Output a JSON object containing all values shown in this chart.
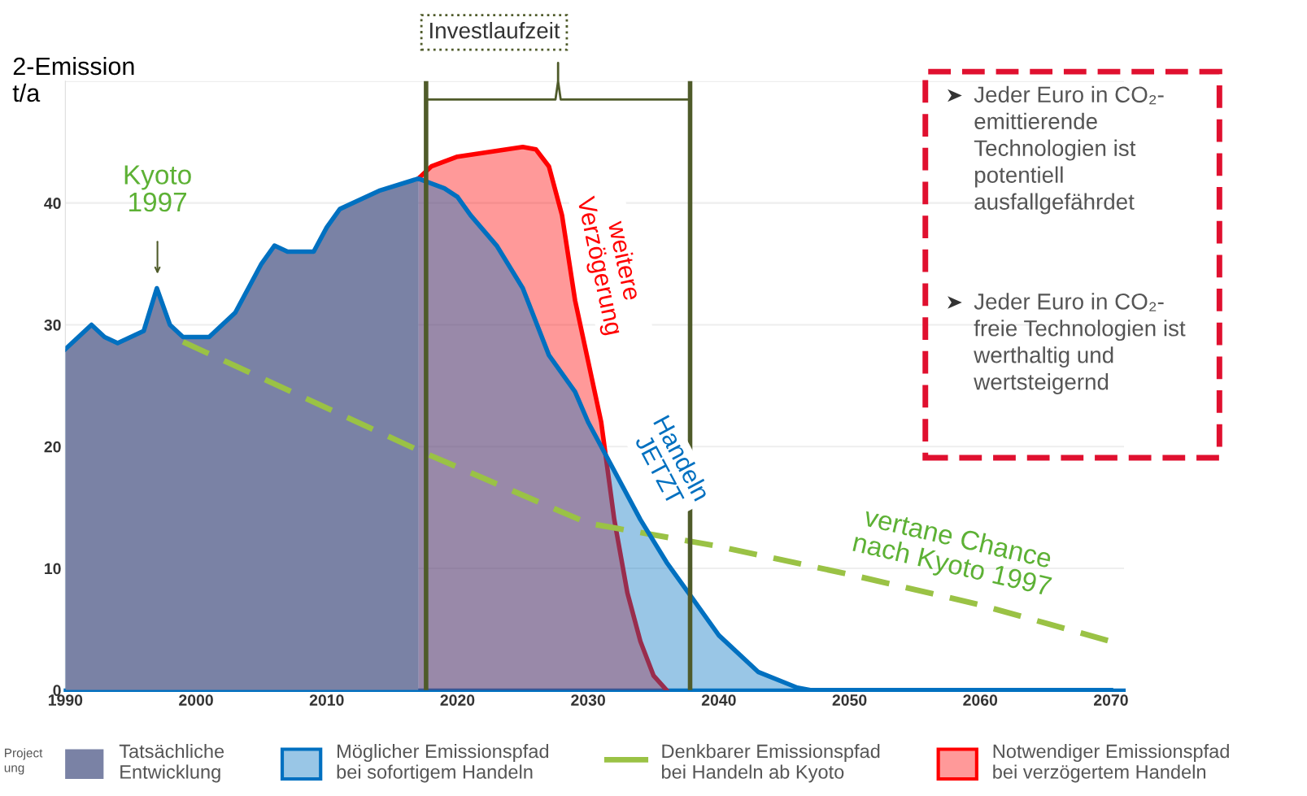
{
  "chart_data": {
    "type": "area",
    "ylabel": "2-Emission\nt/a",
    "xlim": [
      1990,
      2071
    ],
    "xticks": [
      1990,
      2000,
      2010,
      2020,
      2030,
      2040,
      2050,
      2060,
      2070
    ],
    "ylim": [
      0,
      50
    ],
    "yticks": [
      0,
      10,
      20,
      30,
      40,
      {
        "value": 50,
        "label": null
      }
    ],
    "grid": "y",
    "legend": "bottom",
    "series": [
      {
        "name": "Tatsächliche\nEntwicklung",
        "color": "#7a82a5",
        "x": [
          1990,
          1992,
          1993,
          1994,
          1996,
          1997,
          1998,
          1999,
          2001,
          2003,
          2005,
          2006,
          2007,
          2009,
          2010,
          2011,
          2014,
          2017
        ],
        "values": [
          28,
          30,
          29,
          28.5,
          29.5,
          33,
          30,
          29,
          29,
          31,
          35,
          36.5,
          36,
          36,
          38,
          39.5,
          41,
          42
        ]
      },
      {
        "name": "Möglicher Emissionspfad\nbei sofortigem Handeln",
        "color": "#0070c0",
        "line_style": "solid",
        "x": [
          1990,
          1992,
          1993,
          1994,
          1996,
          1997,
          1998,
          1999,
          2001,
          2003,
          2005,
          2006,
          2007,
          2009,
          2010,
          2011,
          2014,
          2017,
          2019,
          2020,
          2021,
          2023,
          2025,
          2027,
          2029,
          2030,
          2032,
          2034,
          2036,
          2038,
          2040,
          2043,
          2046,
          2047,
          2070
        ],
        "values": [
          28,
          30,
          29,
          28.5,
          29.5,
          33,
          30,
          29,
          29,
          31,
          35,
          36.5,
          36,
          36,
          38,
          39.5,
          41,
          42,
          41.2,
          40.5,
          39,
          36.5,
          33,
          27.5,
          24.5,
          22,
          18,
          14,
          10.5,
          7.5,
          4.5,
          1.5,
          0.2,
          0,
          0
        ]
      },
      {
        "name": "Denkbarer Emissionspfad\nbei Handeln ab Kyoto",
        "type": "line",
        "color": "#9ac245",
        "line_style": "dashed",
        "x": [
          1999,
          2017,
          2030,
          2040,
          2050,
          2060,
          2070
        ],
        "values": [
          28.6,
          19.7,
          13.7,
          11.8,
          9.5,
          7,
          4
        ]
      },
      {
        "name": "Notwendiger Emissionspfad\nbei verzögertem Handeln",
        "color": "#ff0000",
        "line_style": "solid",
        "x": [
          2017,
          2018,
          2020,
          2025,
          2026,
          2027,
          2028,
          2029,
          2030,
          2031,
          2032,
          2033,
          2034,
          2035,
          2036
        ],
        "values": [
          42,
          43,
          43.8,
          44.6,
          44.4,
          43,
          39,
          32,
          27,
          22,
          14,
          8,
          4,
          1.2,
          0
        ]
      }
    ],
    "ref_lines": [
      {
        "axis": "x",
        "value": 2017.6,
        "label": null,
        "color": "#4f5b2a"
      },
      {
        "axis": "x",
        "value": 2037.8,
        "label": null,
        "color": "#4f5b2a"
      }
    ],
    "annotations": [
      "Kyoto\n1997",
      "Investlaufzeit",
      "weitere\nVerzögerung",
      "Handeln\nJETZT",
      "vertane Chance\nnach Kyoto 1997",
      "Jeder Euro in CO₂-\nemittierende\nTechnologien ist\npotentiell\nausfallgefährdet",
      "Jeder Euro in CO₂-\nfreie Technologien ist\nwerthaltig und\nwertsteigernd",
      "Project\nung"
    ]
  }
}
